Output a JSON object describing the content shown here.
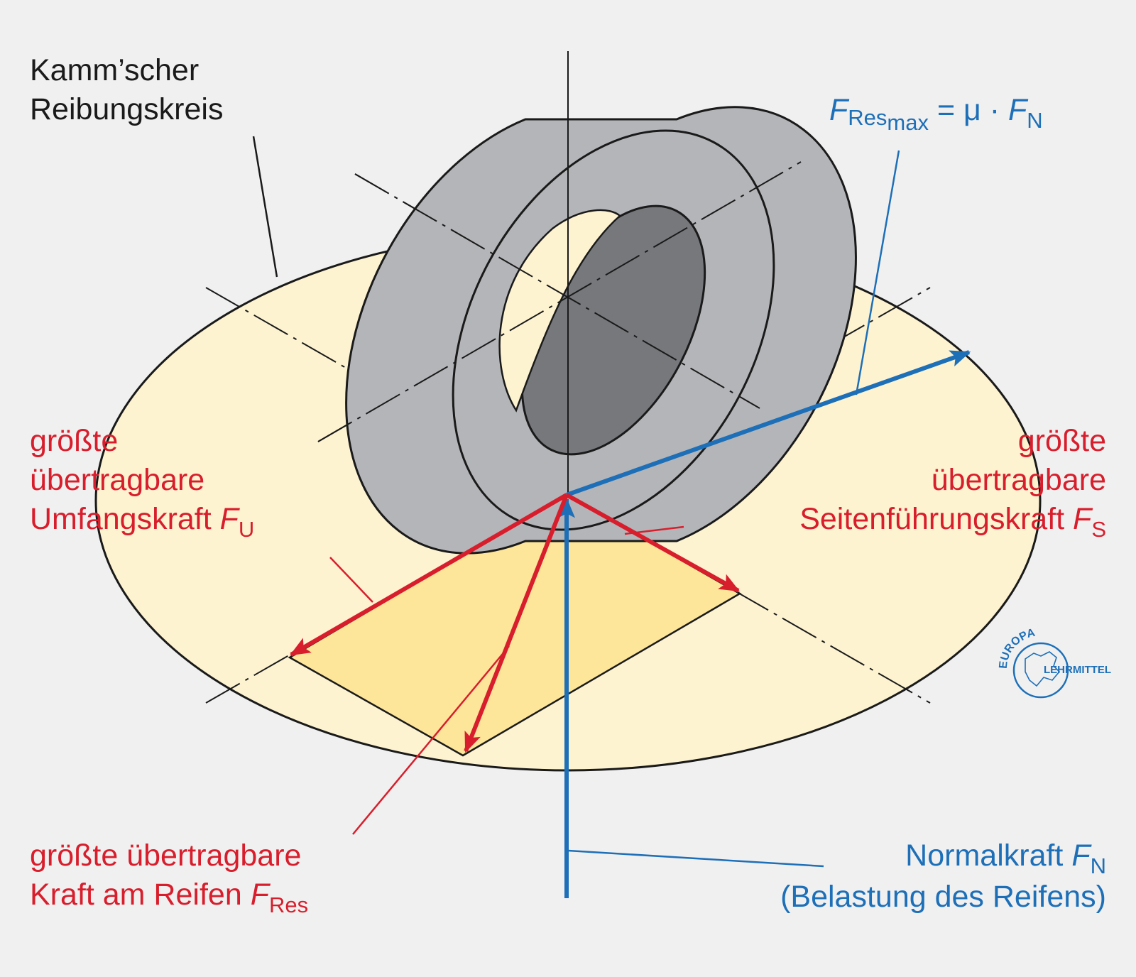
{
  "labels": {
    "kamm_line1": "Kamm’scher",
    "kamm_line2": "Reibungskreis",
    "fres_max": {
      "f": "F",
      "sub_res": "Res",
      "sub_max": "max",
      "rest": " = μ · ",
      "f2": "F",
      "sub_n": "N"
    },
    "umfang": {
      "line1": "größte",
      "line2": "übertragbare",
      "line3": "Umfangskraft ",
      "f": "F",
      "sub": "U"
    },
    "seiten": {
      "line1": "größte",
      "line2": "übertragbare",
      "line3": "Seitenführungskraft ",
      "f": "F",
      "sub": "S"
    },
    "reifen": {
      "line1": "größte übertragbare",
      "line2": "Kraft am Reifen ",
      "f": "F",
      "sub": "Res"
    },
    "normal": {
      "line1": "Normalkraft ",
      "f": "F",
      "sub": "N",
      "line2": "(Belastung des Reifens)"
    }
  },
  "logo": {
    "top_text": "EUROPA",
    "bottom_text": "LEHRMITTEL",
    "icon": "globe-europe-icon"
  },
  "colors": {
    "background": "#f0f0f0",
    "friction_circle": "#fdf3d1",
    "force_parallelogram": "#fde59a",
    "tire_outer": "#b4b5b8",
    "tire_inner": "#76787c",
    "red_force": "#d81e2c",
    "blue_force": "#1d6fb8",
    "line_dark": "#1a1a1a"
  }
}
